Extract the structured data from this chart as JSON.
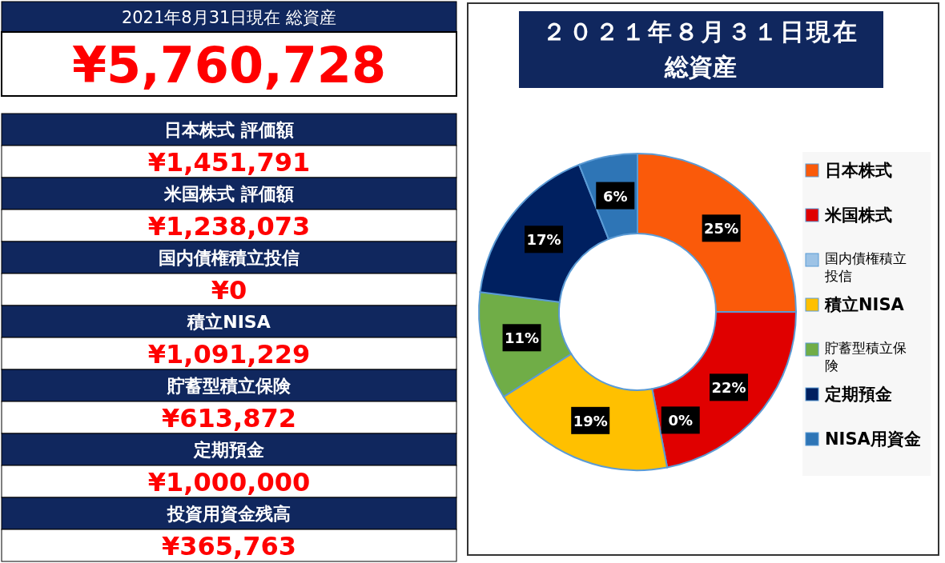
{
  "chart_data": [
    {
      "type": "other",
      "title": "2021年8月31日現在 総資産",
      "annotations": [
        "¥5,760,728",
        "日本株式 評価額",
        "¥1,451,791",
        "米国株式 評価額",
        "¥1,238,073",
        "国内債権積立投信",
        "¥0",
        "積立NISA",
        "¥1,091,229",
        "貯蓄型積立保険",
        "¥613,872",
        "定期預金",
        "¥1,000,000",
        "投資用資金残高",
        "¥365,763"
      ]
    },
    {
      "type": "donut",
      "title": "２０２１年８月３１日現在",
      "subtitle": "総資産",
      "categories": [
        "日本株式",
        "米国株式",
        "国内債権積立投信",
        "積立NISA",
        "貯蓄型積立保険",
        "定期預金",
        "NISA用資金"
      ],
      "values": [
        25,
        22,
        0,
        19,
        11,
        17,
        6
      ],
      "colors": [
        "#fa5a0a",
        "#e00000",
        "#9dc3e6",
        "#ffc000",
        "#70ad47",
        "#002060",
        "#2e75b6"
      ],
      "value_labels": [
        "25%",
        "22%",
        "0%",
        "19%",
        "11%",
        "17%",
        "6%"
      ],
      "legend": "right"
    }
  ]
}
